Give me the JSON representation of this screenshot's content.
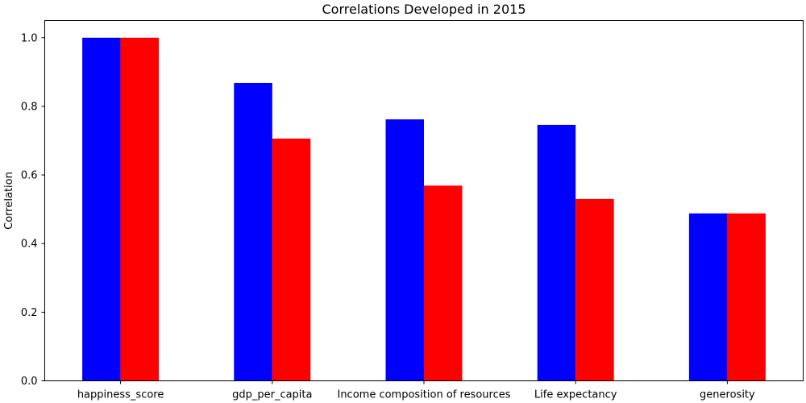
{
  "chart_data": {
    "type": "bar",
    "title": "Correlations Developed in 2015",
    "xlabel": "",
    "ylabel": "Correlation",
    "categories": [
      "happiness_score",
      "gdp_per_capita",
      "Income composition of resources",
      "Life expectancy",
      "generosity"
    ],
    "series": [
      {
        "color": "#0000ff",
        "values": [
          1.0,
          0.868,
          0.762,
          0.746,
          0.488
        ]
      },
      {
        "color": "#ff0000",
        "values": [
          1.0,
          0.706,
          0.569,
          0.53,
          0.488
        ]
      }
    ],
    "ylim": [
      0,
      1.05
    ],
    "yticks": [
      "0.0",
      "0.2",
      "0.4",
      "0.6",
      "0.8",
      "1.0"
    ],
    "grid": false,
    "legend": "none"
  }
}
